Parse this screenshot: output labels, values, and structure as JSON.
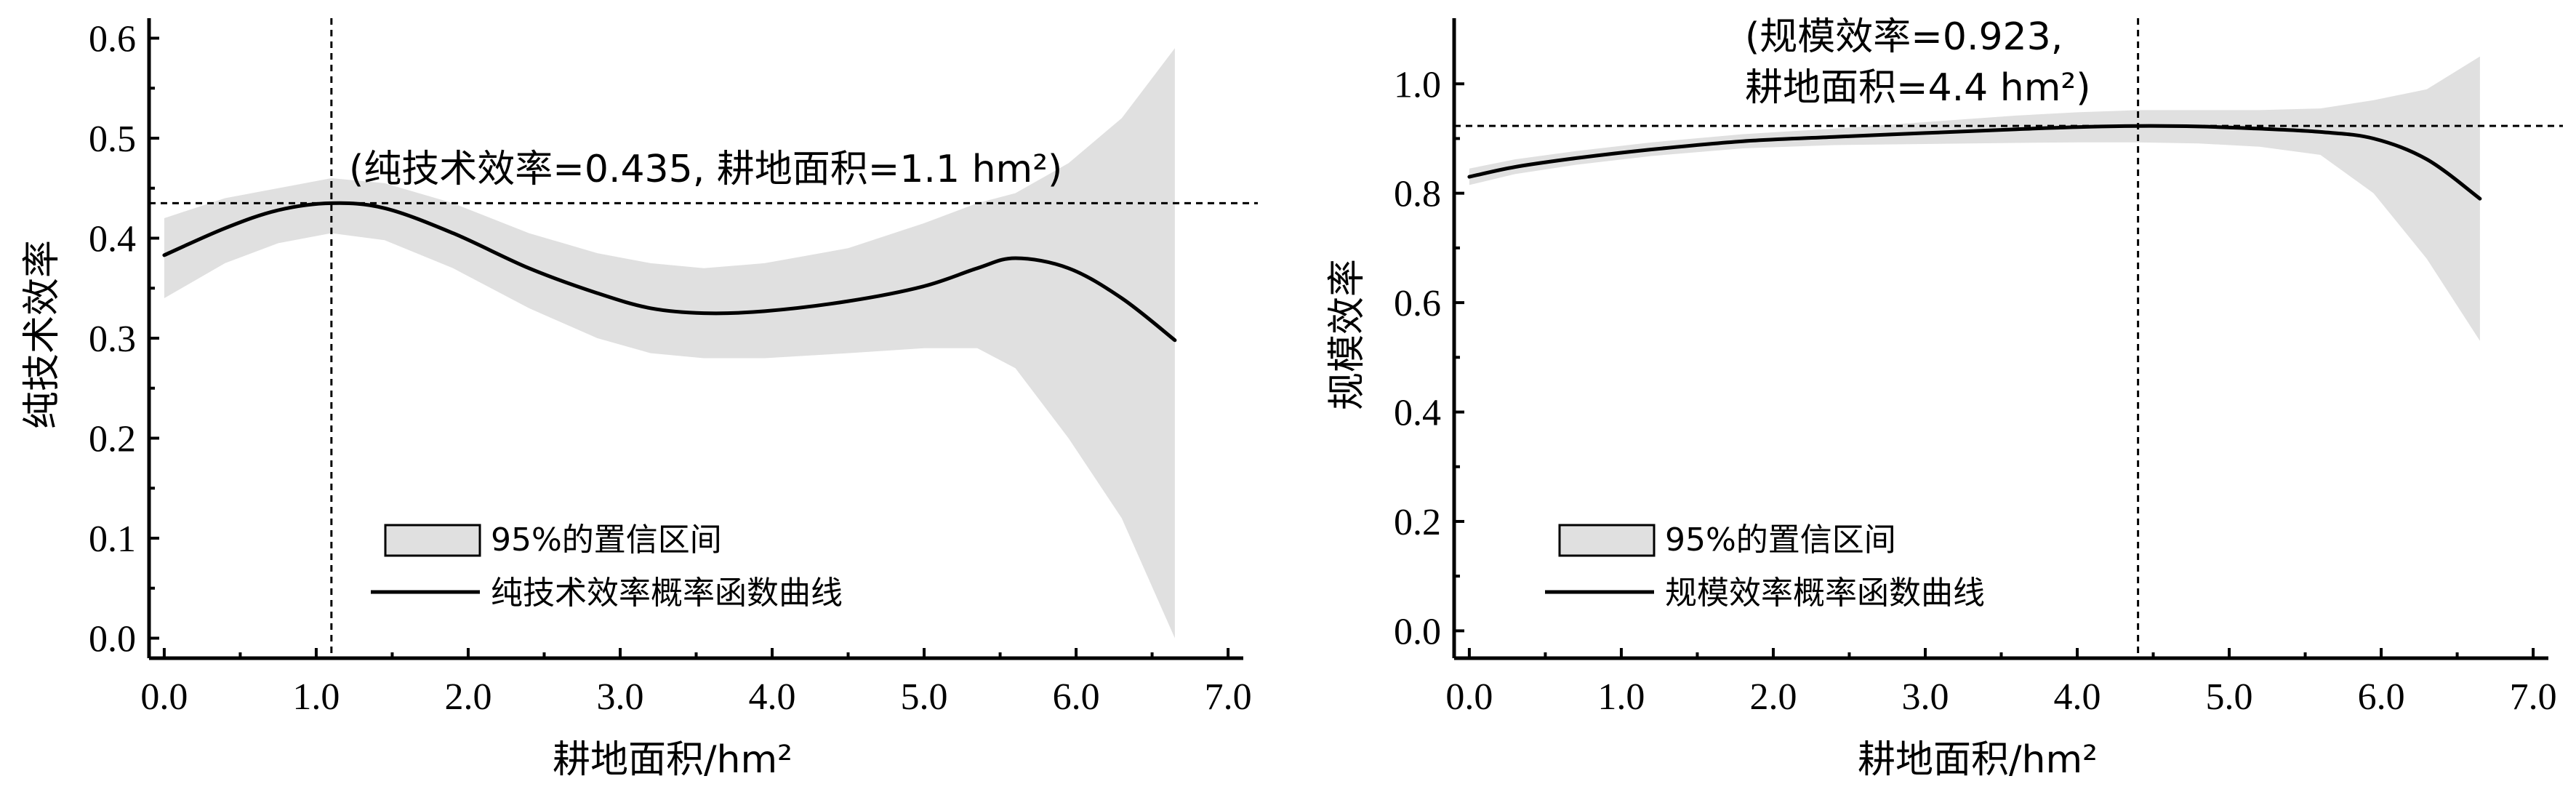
{
  "chart_data": [
    {
      "type": "line",
      "xlabel": "耕地面积/hm²",
      "ylabel": "纯技术效率",
      "xlim": [
        -0.1,
        7.1
      ],
      "ylim": [
        -0.02,
        0.62
      ],
      "xticks": [
        0,
        1,
        2,
        3,
        4,
        5,
        6,
        7
      ],
      "xtick_labels": [
        "0.0",
        "1.0",
        "2.0",
        "3.0",
        "4.0",
        "5.0",
        "6.0",
        "7.0"
      ],
      "yticks": [
        0.0,
        0.1,
        0.2,
        0.3,
        0.4,
        0.5,
        0.6
      ],
      "ytick_labels": [
        "0.0",
        "0.1",
        "0.2",
        "0.3",
        "0.4",
        "0.5",
        "0.6"
      ],
      "annotation": [
        "(纯技术效率=0.435, 耕地面积=1.1 hm²)"
      ],
      "reference": {
        "x": 1.1,
        "y": 0.435
      },
      "legend": {
        "placement": "lower-left",
        "band_label": "95%的置信区间",
        "line_label": "纯技术效率概率函数曲线"
      },
      "series": [
        {
          "name": "纯技术效率概率函数曲线",
          "x": [
            0.0,
            0.4,
            0.75,
            1.1,
            1.45,
            1.9,
            2.4,
            2.85,
            3.2,
            3.55,
            3.95,
            4.5,
            5.0,
            5.35,
            5.6,
            5.95,
            6.3,
            6.65
          ],
          "y": [
            0.383,
            0.41,
            0.428,
            0.435,
            0.43,
            0.405,
            0.37,
            0.345,
            0.33,
            0.325,
            0.327,
            0.337,
            0.352,
            0.37,
            0.38,
            0.37,
            0.34,
            0.298
          ]
        },
        {
          "name": "95%的置信区间",
          "x": [
            0.0,
            0.4,
            0.75,
            1.1,
            1.45,
            1.9,
            2.4,
            2.85,
            3.2,
            3.55,
            3.95,
            4.5,
            5.0,
            5.35,
            5.6,
            5.95,
            6.3,
            6.65
          ],
          "lower": [
            0.34,
            0.375,
            0.395,
            0.405,
            0.398,
            0.37,
            0.33,
            0.3,
            0.285,
            0.28,
            0.28,
            0.285,
            0.29,
            0.29,
            0.27,
            0.2,
            0.12,
            0.0
          ],
          "upper": [
            0.42,
            0.44,
            0.45,
            0.46,
            0.455,
            0.435,
            0.405,
            0.385,
            0.375,
            0.37,
            0.375,
            0.39,
            0.415,
            0.435,
            0.445,
            0.475,
            0.52,
            0.59
          ]
        }
      ]
    },
    {
      "type": "line",
      "xlabel": "耕地面积/hm²",
      "ylabel": "规模效率",
      "xlim": [
        -0.1,
        7.1
      ],
      "ylim": [
        -0.05,
        1.12
      ],
      "xticks": [
        0,
        1,
        2,
        3,
        4,
        5,
        6,
        7
      ],
      "xtick_labels": [
        "0.0",
        "1.0",
        "2.0",
        "3.0",
        "4.0",
        "5.0",
        "6.0",
        "7.0"
      ],
      "yticks": [
        0.0,
        0.2,
        0.4,
        0.6,
        0.8,
        1.0
      ],
      "ytick_labels": [
        "0.0",
        "0.2",
        "0.4",
        "0.6",
        "0.8",
        "1.0"
      ],
      "annotation": [
        "(规模效率=0.923,",
        "耕地面积=4.4 hm²)"
      ],
      "reference": {
        "x": 4.4,
        "y": 0.923
      },
      "legend": {
        "placement": "lower-left",
        "band_label": "95%的置信区间",
        "line_label": "规模效率概率函数曲线"
      },
      "series": [
        {
          "name": "规模效率概率函数曲线",
          "x": [
            0.0,
            0.3,
            0.7,
            1.2,
            1.8,
            2.4,
            3.0,
            3.6,
            4.0,
            4.4,
            4.8,
            5.2,
            5.6,
            5.95,
            6.3,
            6.65
          ],
          "y": [
            0.83,
            0.848,
            0.864,
            0.88,
            0.895,
            0.903,
            0.91,
            0.917,
            0.921,
            0.923,
            0.922,
            0.918,
            0.912,
            0.9,
            0.862,
            0.79
          ]
        },
        {
          "name": "95%的置信区间",
          "x": [
            0.0,
            0.3,
            0.7,
            1.2,
            1.8,
            2.4,
            3.0,
            3.6,
            4.0,
            4.4,
            4.8,
            5.2,
            5.6,
            5.95,
            6.3,
            6.65
          ],
          "lower": [
            0.815,
            0.835,
            0.852,
            0.868,
            0.882,
            0.888,
            0.89,
            0.892,
            0.893,
            0.893,
            0.891,
            0.885,
            0.87,
            0.8,
            0.68,
            0.53
          ],
          "upper": [
            0.845,
            0.862,
            0.877,
            0.893,
            0.908,
            0.918,
            0.93,
            0.942,
            0.948,
            0.952,
            0.952,
            0.952,
            0.955,
            0.97,
            0.99,
            1.05
          ]
        }
      ]
    }
  ]
}
